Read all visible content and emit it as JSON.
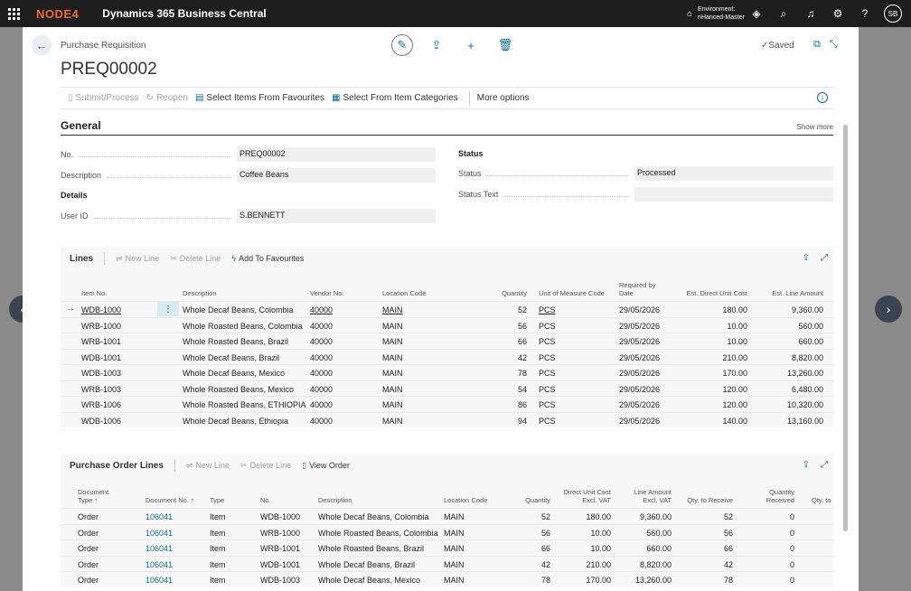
{
  "topbar": {
    "logo": "NODE4",
    "app_title": "Dynamics 365 Business Central",
    "env_label": "Environment:",
    "env_name": "nHanced-Master",
    "avatar": "SB",
    "icons": [
      "building-icon",
      "copilot-icon",
      "search-icon",
      "bell-icon",
      "gear-icon",
      "help-icon"
    ]
  },
  "page": {
    "caption": "Purchase Requisition",
    "title": "PREQ00002",
    "saved": "Saved"
  },
  "actions": {
    "submit": "Submit/Process",
    "reopen": "Reopen",
    "select_fav": "Select Items From Favourites",
    "select_cat": "Select From Item Categories",
    "more": "More options"
  },
  "general": {
    "title": "General",
    "show_more": "Show more",
    "no_label": "No.",
    "no_value": "PREQ00002",
    "desc_label": "Description",
    "desc_value": "Coffee Beans",
    "details_head": "Details",
    "userid_label": "User ID",
    "userid_value": "S.BENNETT",
    "status_head": "Status",
    "status_label": "Status",
    "status_value": "Processed",
    "status_text_label": "Status Text",
    "status_text_value": ""
  },
  "lines": {
    "title": "Lines",
    "new_line": "New Line",
    "delete_line": "Delete Line",
    "add_fav": "Add To Favourites",
    "headers": {
      "item_no": "Item No.",
      "description": "Description",
      "vendor_no": "Vendor No.",
      "location": "Location Code",
      "quantity": "Quantity",
      "uom": "Unit of Measure Code",
      "required_1": "Required by",
      "required_2": "Date",
      "unit_cost": "Est. Direct Unit Cost",
      "amount": "Est. Line Amount"
    },
    "rows": [
      {
        "item": "WDB-1000",
        "desc": "Whole Decaf Beans, Colombia",
        "vendor": "40000",
        "loc": "MAIN",
        "qty": "52",
        "uom": "PCS",
        "date": "29/05/2026",
        "cost": "180.00",
        "amount": "9,360.00"
      },
      {
        "item": "WRB-1000",
        "desc": "Whole Roasted Beans, Colombia",
        "vendor": "40000",
        "loc": "MAIN",
        "qty": "56",
        "uom": "PCS",
        "date": "29/05/2026",
        "cost": "10.00",
        "amount": "560.00"
      },
      {
        "item": "WRB-1001",
        "desc": "Whole Roasted Beans, Brazil",
        "vendor": "40000",
        "loc": "MAIN",
        "qty": "66",
        "uom": "PCS",
        "date": "29/05/2026",
        "cost": "10.00",
        "amount": "660.00"
      },
      {
        "item": "WDB-1001",
        "desc": "Whole Decaf Beans, Brazil",
        "vendor": "40000",
        "loc": "MAIN",
        "qty": "42",
        "uom": "PCS",
        "date": "29/05/2026",
        "cost": "210.00",
        "amount": "8,820.00"
      },
      {
        "item": "WDB-1003",
        "desc": "Whole Decaf Beans, Mexico",
        "vendor": "40000",
        "loc": "MAIN",
        "qty": "78",
        "uom": "PCS",
        "date": "29/05/2026",
        "cost": "170.00",
        "amount": "13,260.00"
      },
      {
        "item": "WRB-1003",
        "desc": "Whole Roasted Beans, Mexico",
        "vendor": "40000",
        "loc": "MAIN",
        "qty": "54",
        "uom": "PCS",
        "date": "29/05/2026",
        "cost": "120.00",
        "amount": "6,480.00"
      },
      {
        "item": "WRB-1006",
        "desc": "Whole Roasted Beans, ETHIOPIA",
        "vendor": "40000",
        "loc": "MAIN",
        "qty": "86",
        "uom": "PCS",
        "date": "29/05/2026",
        "cost": "120.00",
        "amount": "10,320.00"
      },
      {
        "item": "WDB-1006",
        "desc": "Whole Decaf Beans, Ethiopia",
        "vendor": "40000",
        "loc": "MAIN",
        "qty": "94",
        "uom": "PCS",
        "date": "29/05/2026",
        "cost": "140.00",
        "amount": "13,160.00"
      }
    ]
  },
  "po_lines": {
    "title": "Purchase Order Lines",
    "new_line": "New Line",
    "delete_line": "Delete Line",
    "view_order": "View Order",
    "headers": {
      "doc_type_1": "Document",
      "doc_type_2": "Type ↑",
      "doc_no": "Document No. ↑",
      "type": "Type",
      "no": "No.",
      "description": "Description",
      "location": "Location Code",
      "quantity": "Quantity",
      "unit_cost_1": "Direct Unit Cost",
      "unit_cost_2": "Excl. VAT",
      "amount_1": "Line Amount",
      "amount_2": "Excl. VAT",
      "to_receive": "Qty. to Receive",
      "received_1": "Quantity",
      "received_2": "Received",
      "qty_to": "Qty. to"
    },
    "rows": [
      {
        "doc_type": "Order",
        "doc_no": "106041",
        "type": "Item",
        "no": "WDB-1000",
        "desc": "Whole Decaf Beans, Colombia",
        "loc": "MAIN",
        "qty": "52",
        "cost": "180.00",
        "amount": "9,360.00",
        "to_receive": "52",
        "received": "0"
      },
      {
        "doc_type": "Order",
        "doc_no": "106041",
        "type": "Item",
        "no": "WRB-1000",
        "desc": "Whole Roasted Beans, Colombia",
        "loc": "MAIN",
        "qty": "56",
        "cost": "10.00",
        "amount": "560.00",
        "to_receive": "56",
        "received": "0"
      },
      {
        "doc_type": "Order",
        "doc_no": "106041",
        "type": "Item",
        "no": "WRB-1001",
        "desc": "Whole Roasted Beans, Brazil",
        "loc": "MAIN",
        "qty": "66",
        "cost": "10.00",
        "amount": "660.00",
        "to_receive": "66",
        "received": "0"
      },
      {
        "doc_type": "Order",
        "doc_no": "106041",
        "type": "Item",
        "no": "WDB-1001",
        "desc": "Whole Decaf Beans, Brazil",
        "loc": "MAIN",
        "qty": "42",
        "cost": "210.00",
        "amount": "8,820.00",
        "to_receive": "42",
        "received": "0"
      },
      {
        "doc_type": "Order",
        "doc_no": "106041",
        "type": "Item",
        "no": "WDB-1003",
        "desc": "Whole Decaf Beans, Mexico",
        "loc": "MAIN",
        "qty": "78",
        "cost": "170.00",
        "amount": "13,260.00",
        "to_receive": "78",
        "received": "0"
      }
    ]
  }
}
